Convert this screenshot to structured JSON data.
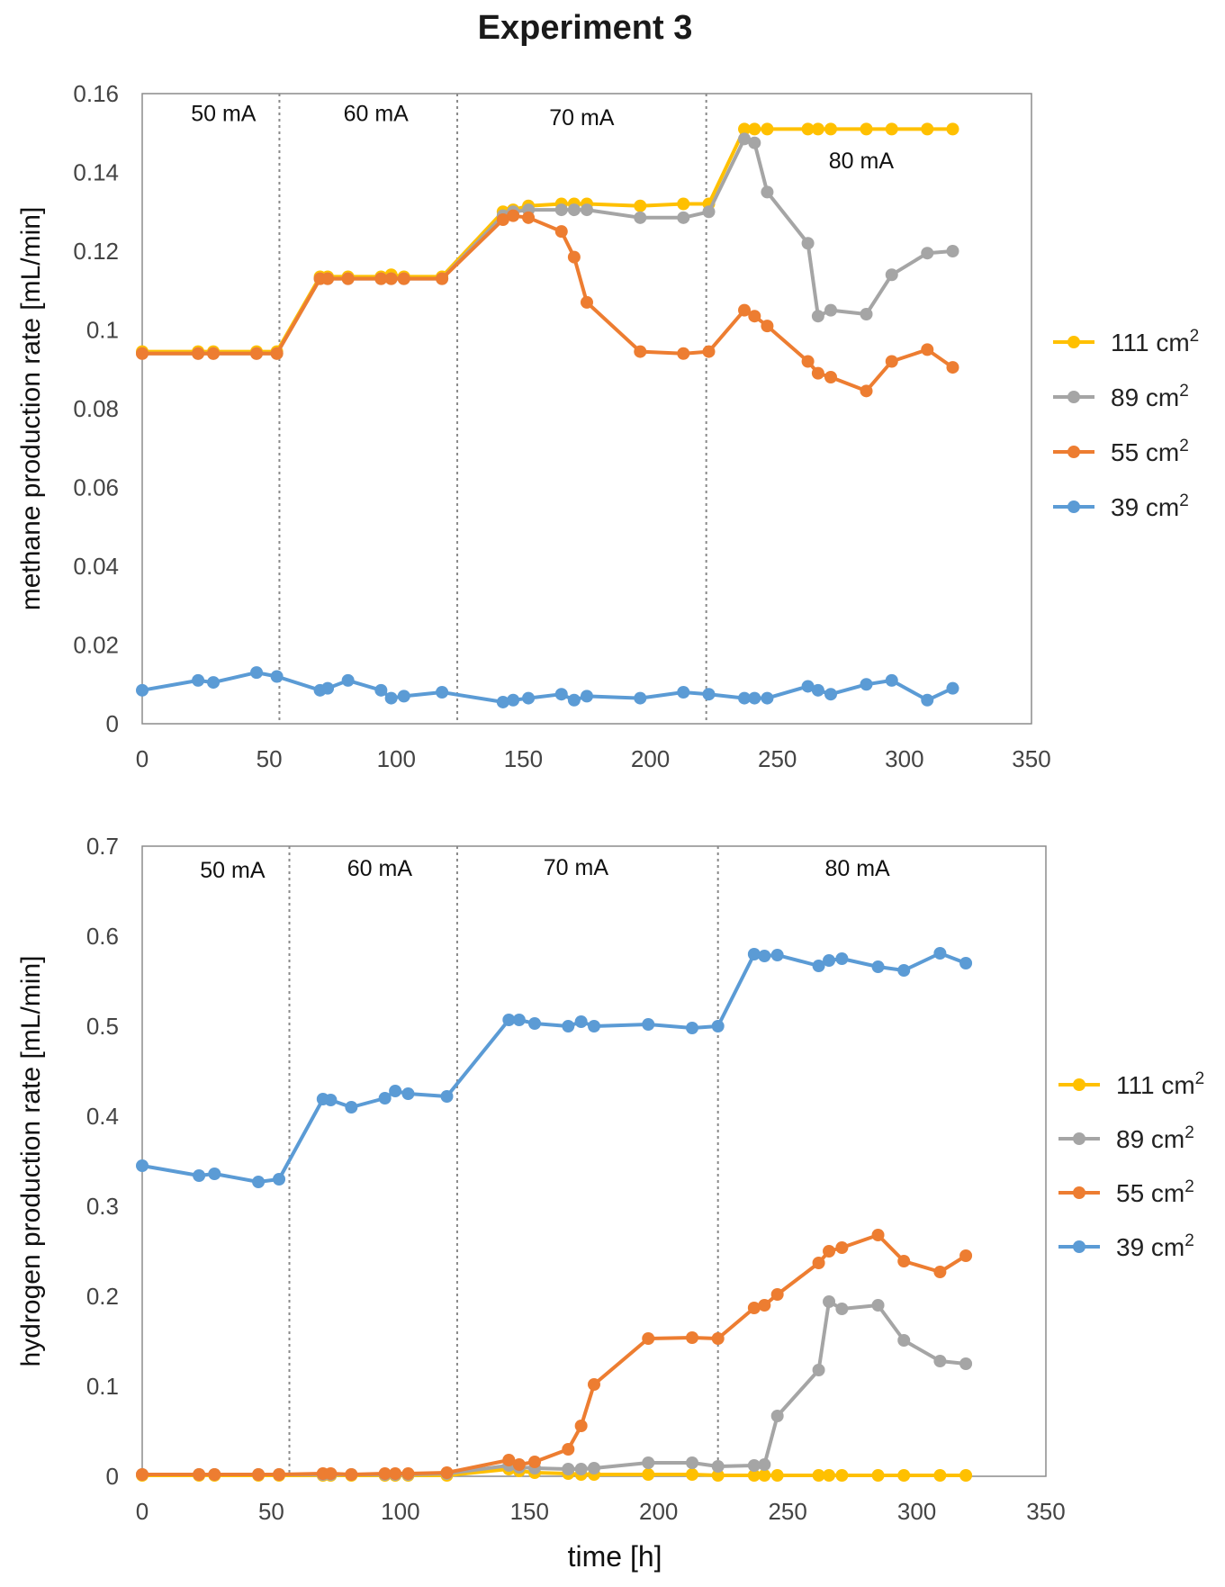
{
  "figure_title": "Experiment 3",
  "chart_data": [
    {
      "type": "line",
      "title": "",
      "ylabel": "methane production rate [mL/min]",
      "xlabel": "",
      "xlim": [
        0,
        350
      ],
      "ylim": [
        0,
        0.16
      ],
      "xticks": [
        "0",
        "50",
        "100",
        "150",
        "200",
        "250",
        "300",
        "350"
      ],
      "yticks": [
        "0",
        "0.02",
        "0.04",
        "0.06",
        "0.08",
        "0.1",
        "0.12",
        "0.14",
        "0.16"
      ],
      "phase_lines": [
        54,
        124,
        222
      ],
      "phase_labels": [
        {
          "text": "50 mA",
          "x": 32,
          "y": 0.153
        },
        {
          "text": "60 mA",
          "x": 92,
          "y": 0.153
        },
        {
          "text": "70 mA",
          "x": 173,
          "y": 0.152
        },
        {
          "text": "80 mA",
          "x": 283,
          "y": 0.141
        }
      ],
      "legend_position": "right",
      "series": [
        {
          "name": "111 cm2",
          "color": "#FFC000",
          "x": [
            0,
            22,
            28,
            45,
            53,
            70,
            73,
            81,
            94,
            98,
            103,
            118,
            142,
            146,
            152,
            165,
            170,
            175,
            196,
            213,
            223,
            237,
            241,
            246,
            262,
            266,
            271,
            285,
            295,
            309,
            319
          ],
          "y": [
            0.0945,
            0.0945,
            0.0945,
            0.0945,
            0.0945,
            0.1135,
            0.1135,
            0.1135,
            0.1135,
            0.114,
            0.1135,
            0.1135,
            0.13,
            0.1305,
            0.1315,
            0.132,
            0.132,
            0.132,
            0.1315,
            0.132,
            0.132,
            0.151,
            0.151,
            0.151,
            0.151,
            0.151,
            0.151,
            0.151,
            0.151,
            0.151,
            0.151
          ]
        },
        {
          "name": "89 cm2",
          "color": "#A5A5A5",
          "x": [
            0,
            22,
            28,
            45,
            53,
            70,
            73,
            81,
            94,
            98,
            103,
            118,
            142,
            146,
            152,
            165,
            170,
            175,
            196,
            213,
            223,
            237,
            241,
            246,
            262,
            266,
            271,
            285,
            295,
            309,
            319
          ],
          "y": [
            0.094,
            0.094,
            0.094,
            0.094,
            0.094,
            0.113,
            0.113,
            0.113,
            0.113,
            0.113,
            0.113,
            0.113,
            0.129,
            0.13,
            0.1305,
            0.1305,
            0.1305,
            0.1305,
            0.1285,
            0.1285,
            0.13,
            0.1485,
            0.1475,
            0.135,
            0.122,
            0.1035,
            0.105,
            0.104,
            0.114,
            0.1195,
            0.12
          ]
        },
        {
          "name": "55 cm2",
          "color": "#ED7D31",
          "x": [
            0,
            22,
            28,
            45,
            53,
            70,
            73,
            81,
            94,
            98,
            103,
            118,
            142,
            146,
            152,
            165,
            170,
            175,
            196,
            213,
            223,
            237,
            241,
            246,
            262,
            266,
            271,
            285,
            295,
            309,
            319
          ],
          "y": [
            0.094,
            0.094,
            0.094,
            0.094,
            0.094,
            0.113,
            0.113,
            0.113,
            0.113,
            0.113,
            0.113,
            0.113,
            0.128,
            0.129,
            0.1285,
            0.125,
            0.1185,
            0.107,
            0.0945,
            0.094,
            0.0945,
            0.105,
            0.1035,
            0.101,
            0.092,
            0.089,
            0.088,
            0.0845,
            0.092,
            0.095,
            0.0905
          ]
        },
        {
          "name": "39 cm2",
          "color": "#5B9BD5",
          "x": [
            0,
            22,
            28,
            45,
            53,
            70,
            73,
            81,
            94,
            98,
            103,
            118,
            142,
            146,
            152,
            165,
            170,
            175,
            196,
            213,
            223,
            237,
            241,
            246,
            262,
            266,
            271,
            285,
            295,
            309,
            319
          ],
          "y": [
            0.0085,
            0.011,
            0.0105,
            0.013,
            0.012,
            0.0085,
            0.009,
            0.011,
            0.0085,
            0.0065,
            0.007,
            0.008,
            0.0055,
            0.006,
            0.0065,
            0.0075,
            0.006,
            0.007,
            0.0065,
            0.008,
            0.0075,
            0.0065,
            0.0065,
            0.0065,
            0.0095,
            0.0085,
            0.0075,
            0.01,
            0.011,
            0.006,
            0.009
          ]
        }
      ]
    },
    {
      "type": "line",
      "title": "",
      "ylabel": "hydrogen production rate [mL/min]",
      "xlabel": "time [h]",
      "xlim": [
        0,
        350
      ],
      "ylim": [
        0,
        0.7
      ],
      "xticks": [
        "0",
        "50",
        "100",
        "150",
        "200",
        "250",
        "300",
        "350"
      ],
      "yticks": [
        "0",
        "0.1",
        "0.2",
        "0.3",
        "0.4",
        "0.5",
        "0.6",
        "0.7"
      ],
      "phase_lines": [
        57,
        122,
        223
      ],
      "phase_labels": [
        {
          "text": "50 mA",
          "x": 35,
          "y": 0.665
        },
        {
          "text": "60 mA",
          "x": 92,
          "y": 0.667
        },
        {
          "text": "70 mA",
          "x": 168,
          "y": 0.668
        },
        {
          "text": "80 mA",
          "x": 277,
          "y": 0.667
        }
      ],
      "legend_position": "right",
      "series": [
        {
          "name": "111 cm2",
          "color": "#FFC000",
          "x": [
            0,
            22,
            28,
            45,
            53,
            70,
            73,
            81,
            94,
            98,
            103,
            118,
            142,
            146,
            152,
            165,
            170,
            175,
            196,
            213,
            223,
            237,
            241,
            246,
            262,
            266,
            271,
            285,
            295,
            309,
            319
          ],
          "y": [
            0.001,
            0.001,
            0.001,
            0.001,
            0.001,
            0.001,
            0.001,
            0.001,
            0.001,
            0.001,
            0.001,
            0.001,
            0.008,
            0.006,
            0.004,
            0.003,
            0.002,
            0.002,
            0.002,
            0.002,
            0.001,
            0.001,
            0.001,
            0.001,
            0.001,
            0.001,
            0.001,
            0.001,
            0.001,
            0.001,
            0.001
          ]
        },
        {
          "name": "89 cm2",
          "color": "#A5A5A5",
          "x": [
            0,
            22,
            28,
            45,
            53,
            70,
            73,
            81,
            94,
            98,
            103,
            118,
            142,
            146,
            152,
            165,
            170,
            175,
            196,
            213,
            223,
            237,
            241,
            246,
            262,
            266,
            271,
            285,
            295,
            309,
            319
          ],
          "y": [
            0.002,
            0.002,
            0.002,
            0.002,
            0.002,
            0.002,
            0.002,
            0.002,
            0.002,
            0.002,
            0.002,
            0.003,
            0.012,
            0.01,
            0.009,
            0.008,
            0.008,
            0.009,
            0.015,
            0.015,
            0.011,
            0.012,
            0.013,
            0.067,
            0.118,
            0.194,
            0.186,
            0.19,
            0.151,
            0.128,
            0.125
          ]
        },
        {
          "name": "55 cm2",
          "color": "#ED7D31",
          "x": [
            0,
            22,
            28,
            45,
            53,
            70,
            73,
            81,
            94,
            98,
            103,
            118,
            142,
            146,
            152,
            165,
            170,
            175,
            196,
            213,
            223,
            237,
            241,
            246,
            262,
            266,
            271,
            285,
            295,
            309,
            319
          ],
          "y": [
            0.002,
            0.002,
            0.002,
            0.002,
            0.002,
            0.003,
            0.003,
            0.002,
            0.003,
            0.003,
            0.003,
            0.004,
            0.018,
            0.013,
            0.016,
            0.03,
            0.056,
            0.102,
            0.153,
            0.154,
            0.153,
            0.187,
            0.19,
            0.202,
            0.237,
            0.25,
            0.254,
            0.268,
            0.239,
            0.227,
            0.245
          ]
        },
        {
          "name": "39 cm2",
          "color": "#5B9BD5",
          "x": [
            0,
            22,
            28,
            45,
            53,
            70,
            73,
            81,
            94,
            98,
            103,
            118,
            142,
            146,
            152,
            165,
            170,
            175,
            196,
            213,
            223,
            237,
            241,
            246,
            262,
            266,
            271,
            285,
            295,
            309,
            319
          ],
          "y": [
            0.345,
            0.334,
            0.336,
            0.327,
            0.33,
            0.419,
            0.418,
            0.41,
            0.42,
            0.428,
            0.425,
            0.422,
            0.507,
            0.507,
            0.503,
            0.5,
            0.505,
            0.5,
            0.502,
            0.498,
            0.5,
            0.58,
            0.578,
            0.579,
            0.567,
            0.573,
            0.575,
            0.566,
            0.562,
            0.581,
            0.57
          ]
        }
      ]
    }
  ]
}
